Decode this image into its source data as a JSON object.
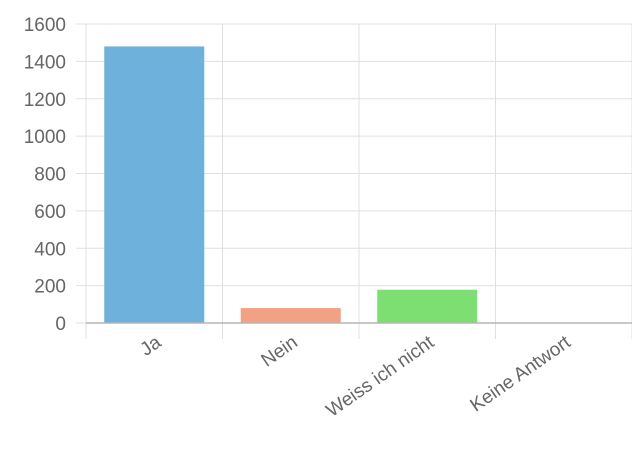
{
  "chart_data": {
    "type": "bar",
    "categories": [
      "Ja",
      "Nein",
      "Weiss ich nicht",
      "Keine Antwort"
    ],
    "values": [
      1480,
      80,
      178,
      0
    ],
    "colors": [
      "#6fb1dd",
      "#f2a185",
      "#7ddf72",
      "#cccccc"
    ],
    "y_ticks": [
      0,
      200,
      400,
      600,
      800,
      1000,
      1200,
      1400,
      1600
    ],
    "ylim": [
      0,
      1600
    ],
    "grid": true,
    "legend": "none"
  }
}
